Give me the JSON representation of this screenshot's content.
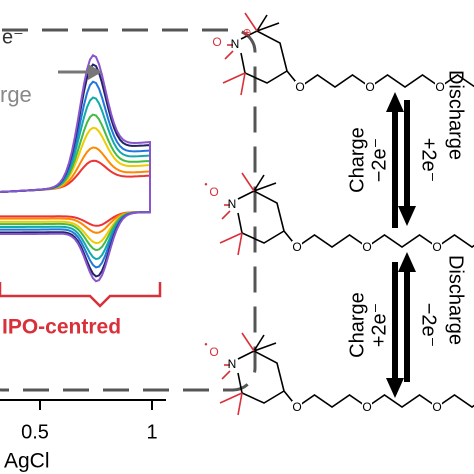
{
  "cv_panel": {
    "legend_electron": "e⁻",
    "legend_word": "rge",
    "bracket_label": "IPO-centred",
    "x_axis_label": "AgCl",
    "x_ticks": [
      "0.5",
      "1"
    ]
  },
  "scheme": {
    "molecules": [
      {
        "oxygen": "O",
        "nitrogen": "N",
        "mark": "⊕",
        "chain_oxygens": [
          "O",
          "O",
          "O"
        ]
      },
      {
        "oxygen": "O",
        "nitrogen": "N",
        "mark": "•",
        "chain_oxygens": [
          "O",
          "O",
          "O"
        ]
      },
      {
        "oxygen": "O",
        "nitrogen": "N",
        "mark": "•",
        "chain_oxygens": [
          "O",
          "O",
          "O"
        ]
      }
    ],
    "steps": [
      {
        "left": "Charge",
        "left_electrons": "−2e⁻",
        "right_electrons": "+2e⁻",
        "right": "Discharge"
      },
      {
        "left": "Charge",
        "left_electrons": "+2e⁻",
        "right_electrons": "−2e⁻",
        "right": "Discharge"
      }
    ]
  }
}
